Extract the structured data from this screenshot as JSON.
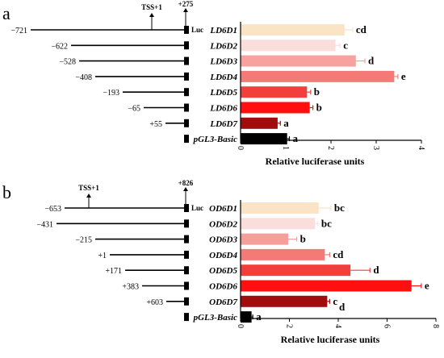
{
  "chart_data": [
    {
      "type": "bar",
      "orientation": "horizontal",
      "panel_label": "a",
      "categories": [
        "LD6D1",
        "LD6D2",
        "LD6D3",
        "LD6D4",
        "LD6D5",
        "LD6D6",
        "LD6D7",
        "pGL3-Basic"
      ],
      "values": [
        2.3,
        2.1,
        2.55,
        3.4,
        1.47,
        1.53,
        0.82,
        1.03
      ],
      "errors": [
        0.18,
        0.1,
        0.2,
        0.08,
        0.08,
        0.07,
        0.06,
        0.05
      ],
      "significance": [
        "cd",
        "c",
        "d",
        "e",
        "b",
        "b",
        "a",
        "a"
      ],
      "colors": [
        "#FBE3C5",
        "#F9DEDC",
        "#F7A29E",
        "#F47A78",
        "#F23F3C",
        "#FF0F0F",
        "#A10D0D",
        "#000000"
      ],
      "xlabel": "Relative luciferase units",
      "xlim": [
        0,
        4
      ],
      "xticks": [
        "0",
        "1",
        "2",
        "3",
        "4"
      ],
      "construct_positions": [
        "−721",
        "−622",
        "−528",
        "−408",
        "−193",
        "−65",
        "+55"
      ],
      "construct_starts": [
        -721,
        -622,
        -528,
        -408,
        -193,
        -65,
        55
      ],
      "tss_label": "TSS+1",
      "end_label": "+275",
      "luc_label": "Luc"
    },
    {
      "type": "bar",
      "orientation": "horizontal",
      "panel_label": "b",
      "categories": [
        "OD6D1",
        "OD6D2",
        "OD6D3",
        "OD6D4",
        "OD6D5",
        "OD6D6",
        "OD6D7",
        "pGL3-Basic"
      ],
      "values": [
        3.2,
        3.05,
        1.95,
        3.45,
        4.5,
        7.0,
        3.55,
        0.45
      ],
      "errors": [
        0.5,
        0.12,
        0.35,
        0.2,
        0.8,
        0.4,
        0.1,
        0.05
      ],
      "significance": [
        "bc",
        "bc",
        "b",
        "cd",
        "d",
        "e",
        "c",
        "a"
      ],
      "significance_extra": "d",
      "colors": [
        "#FBE3C5",
        "#F9DEDC",
        "#F49F99",
        "#F47A78",
        "#F23F3C",
        "#FF0F0F",
        "#A10D0D",
        "#000000"
      ],
      "xlabel": "Relative luciferase units",
      "xlim": [
        0,
        8
      ],
      "xticks": [
        "0",
        "2",
        "4",
        "6",
        "8"
      ],
      "construct_positions": [
        "−653",
        "−431",
        "−215",
        "+1",
        "+171",
        "+383",
        "+603"
      ],
      "construct_starts": [
        -653,
        -431,
        -215,
        1,
        171,
        383,
        603
      ],
      "tss_label": "TSS+1",
      "end_label": "+826",
      "luc_label": "Luc"
    }
  ]
}
